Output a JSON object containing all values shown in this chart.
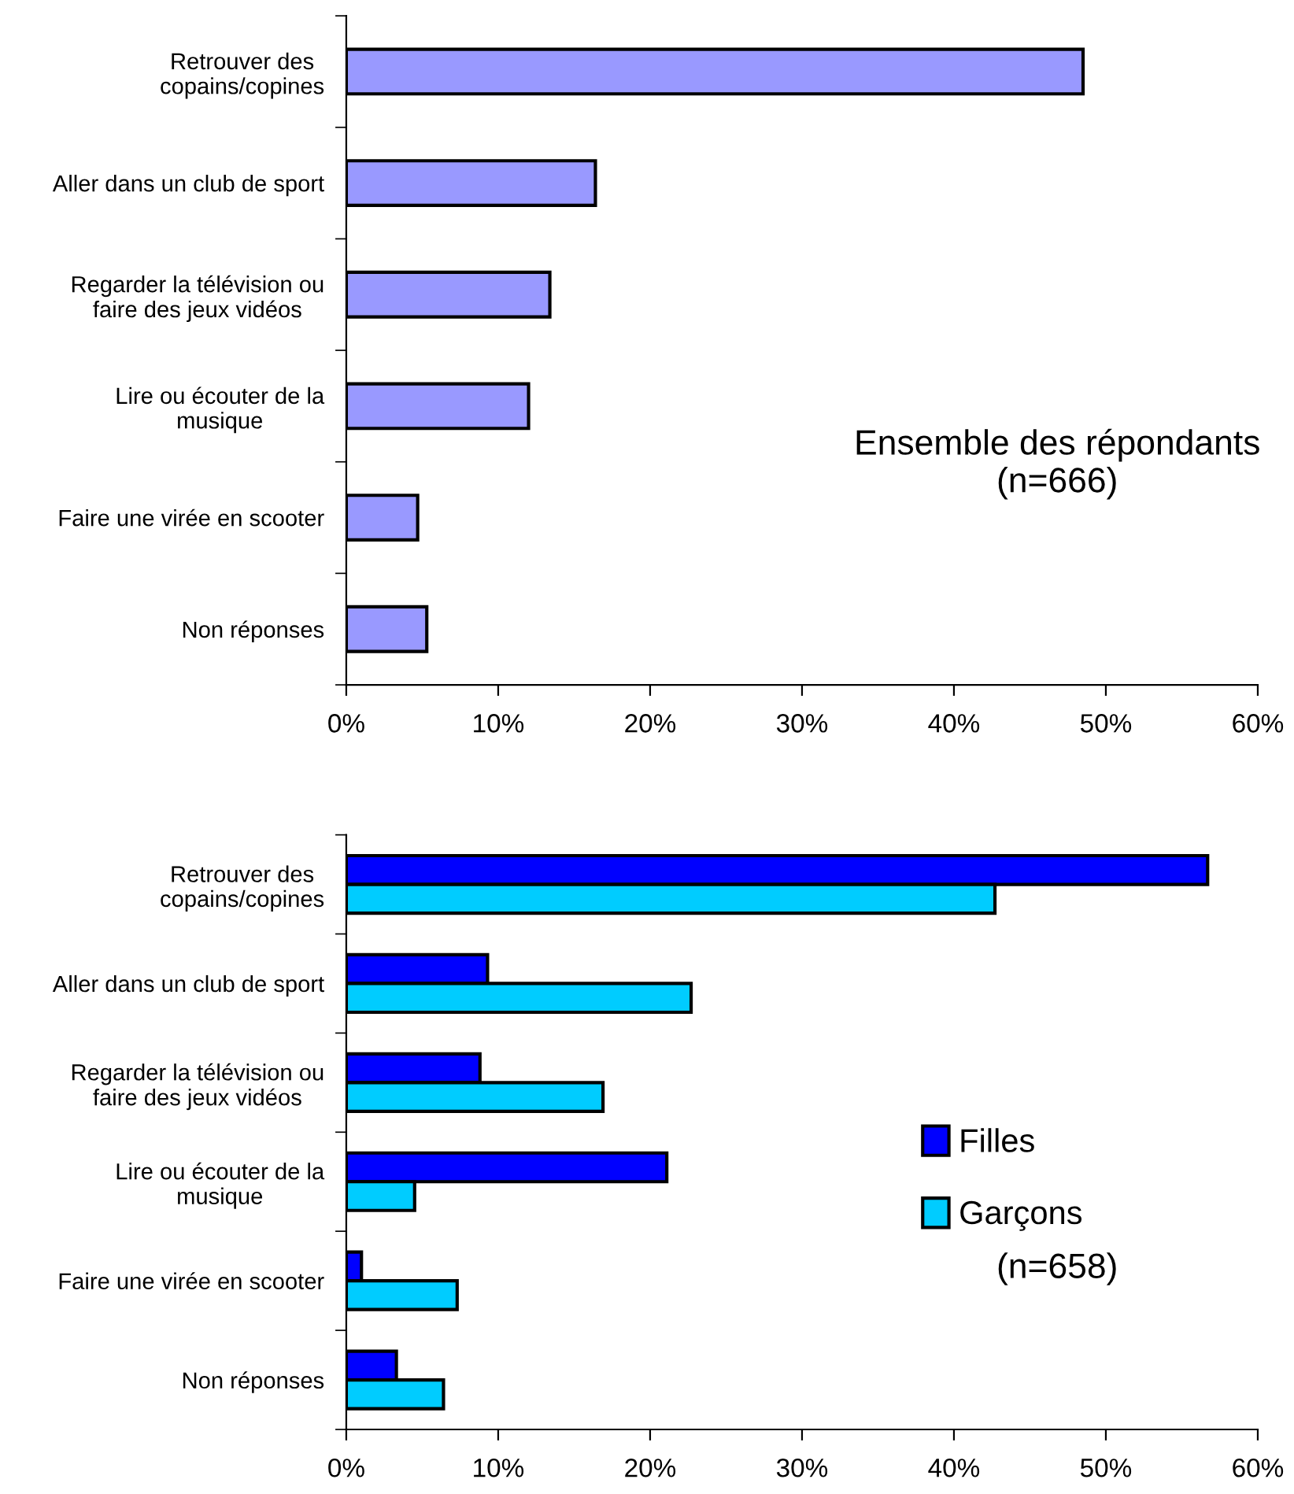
{
  "chart_data": [
    {
      "type": "bar",
      "orientation": "horizontal",
      "categories": [
        "Retrouver des\ncopains/copines",
        "Aller dans un club de sport",
        "Regarder la télévision ou\nfaire des jeux vidéos",
        "Lire ou écouter de la\nmusique",
        "Faire une virée en scooter",
        "Non réponses"
      ],
      "series": [
        {
          "color": "#9999ff",
          "values": [
            48.5,
            16.4,
            13.4,
            12.0,
            4.7,
            5.3
          ]
        }
      ],
      "xlim": [
        0,
        60
      ],
      "xticks": [
        {
          "value": 0,
          "label": "0%"
        },
        {
          "value": 10,
          "label": "10%"
        },
        {
          "value": 20,
          "label": "20%"
        },
        {
          "value": 30,
          "label": "30%"
        },
        {
          "value": 40,
          "label": "40%"
        },
        {
          "value": 50,
          "label": "50%"
        },
        {
          "value": 60,
          "label": "60%"
        }
      ],
      "annotations": [
        "Ensemble des répondants\n(n=666)"
      ],
      "grid": false,
      "legend": false
    },
    {
      "type": "bar",
      "orientation": "horizontal",
      "categories": [
        "Retrouver des\ncopains/copines",
        "Aller dans un club de sport",
        "Regarder la télévision ou\nfaire des jeux vidéos",
        "Lire ou écouter de la\nmusique",
        "Faire une virée en scooter",
        "Non réponses"
      ],
      "series": [
        {
          "name": "Filles",
          "color": "#0000ff",
          "values": [
            56.7,
            9.3,
            8.8,
            21.1,
            1.0,
            3.3
          ]
        },
        {
          "name": "Garçons",
          "color": "#00ccff",
          "values": [
            42.7,
            22.7,
            16.9,
            4.5,
            7.3,
            6.4
          ]
        }
      ],
      "xlim": [
        0,
        60
      ],
      "xticks": [
        {
          "value": 0,
          "label": "0%"
        },
        {
          "value": 10,
          "label": "10%"
        },
        {
          "value": 20,
          "label": "20%"
        },
        {
          "value": 30,
          "label": "30%"
        },
        {
          "value": 40,
          "label": "40%"
        },
        {
          "value": 50,
          "label": "50%"
        },
        {
          "value": 60,
          "label": "60%"
        }
      ],
      "annotations": [
        "(n=658)"
      ],
      "grid": false,
      "legend": "right"
    }
  ]
}
